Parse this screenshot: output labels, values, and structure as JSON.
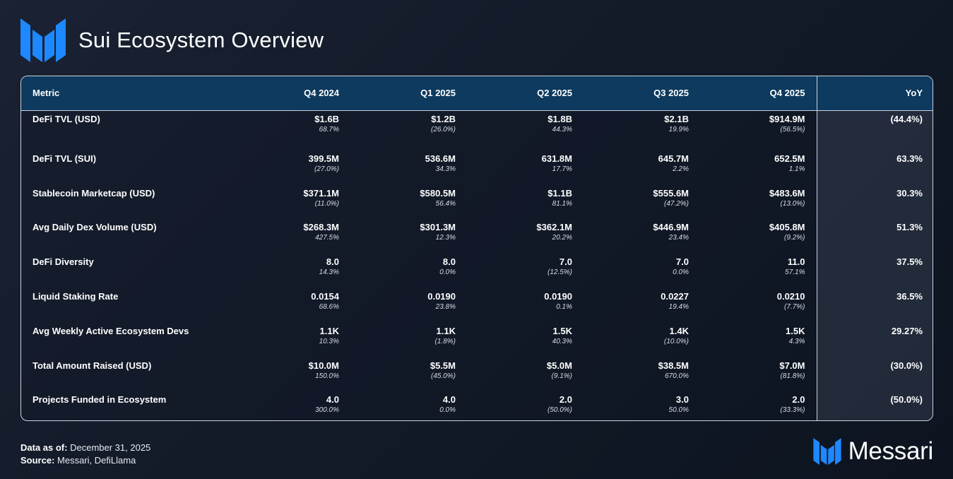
{
  "header": {
    "title": "Sui Ecosystem Overview"
  },
  "colors": {
    "accent_blue": "#1e88ff",
    "header_row": "#0d3a5e",
    "background": "#141c2a"
  },
  "table": {
    "columns": [
      "Metric",
      "Q4 2024",
      "Q1 2025",
      "Q2 2025",
      "Q3 2025",
      "Q4 2025",
      "YoY"
    ],
    "rows": [
      {
        "metric": "DeFi TVL (USD)",
        "q4_2024": {
          "v": "$1.6B",
          "c": "68.7%"
        },
        "q1_2025": {
          "v": "$1.2B",
          "c": "(26.0%)"
        },
        "q2_2025": {
          "v": "$1.8B",
          "c": "44.3%"
        },
        "q3_2025": {
          "v": "$2.1B",
          "c": "19.9%"
        },
        "q4_2025": {
          "v": "$914.9M",
          "c": "(56.5%)"
        },
        "yoy": "(44.4%)"
      },
      {
        "metric": "DeFi TVL (SUI)",
        "q4_2024": {
          "v": "399.5M",
          "c": "(27.0%)"
        },
        "q1_2025": {
          "v": "536.6M",
          "c": "34.3%"
        },
        "q2_2025": {
          "v": "631.8M",
          "c": "17.7%"
        },
        "q3_2025": {
          "v": "645.7M",
          "c": "2.2%"
        },
        "q4_2025": {
          "v": "652.5M",
          "c": "1.1%"
        },
        "yoy": "63.3%"
      },
      {
        "metric": "Stablecoin Marketcap (USD)",
        "q4_2024": {
          "v": "$371.1M",
          "c": "(11.0%)"
        },
        "q1_2025": {
          "v": "$580.5M",
          "c": "56.4%"
        },
        "q2_2025": {
          "v": "$1.1B",
          "c": "81.1%"
        },
        "q3_2025": {
          "v": "$555.6M",
          "c": "(47.2%)"
        },
        "q4_2025": {
          "v": "$483.6M",
          "c": "(13.0%)"
        },
        "yoy": "30.3%"
      },
      {
        "metric": "Avg Daily Dex Volume (USD)",
        "q4_2024": {
          "v": "$268.3M",
          "c": "427.5%"
        },
        "q1_2025": {
          "v": "$301.3M",
          "c": "12.3%"
        },
        "q2_2025": {
          "v": "$362.1M",
          "c": "20.2%"
        },
        "q3_2025": {
          "v": "$446.9M",
          "c": "23.4%"
        },
        "q4_2025": {
          "v": "$405.8M",
          "c": "(9.2%)"
        },
        "yoy": "51.3%"
      },
      {
        "metric": "DeFi Diversity",
        "q4_2024": {
          "v": "8.0",
          "c": "14.3%"
        },
        "q1_2025": {
          "v": "8.0",
          "c": "0.0%"
        },
        "q2_2025": {
          "v": "7.0",
          "c": "(12.5%)"
        },
        "q3_2025": {
          "v": "7.0",
          "c": "0.0%"
        },
        "q4_2025": {
          "v": "11.0",
          "c": "57.1%"
        },
        "yoy": "37.5%"
      },
      {
        "metric": "Liquid Staking Rate",
        "q4_2024": {
          "v": "0.0154",
          "c": "68.6%"
        },
        "q1_2025": {
          "v": "0.0190",
          "c": "23.8%"
        },
        "q2_2025": {
          "v": "0.0190",
          "c": "0.1%"
        },
        "q3_2025": {
          "v": "0.0227",
          "c": "19.4%"
        },
        "q4_2025": {
          "v": "0.0210",
          "c": "(7.7%)"
        },
        "yoy": "36.5%"
      },
      {
        "metric": "Avg Weekly Active Ecosystem Devs",
        "q4_2024": {
          "v": "1.1K",
          "c": "10.3%"
        },
        "q1_2025": {
          "v": "1.1K",
          "c": "(1.8%)"
        },
        "q2_2025": {
          "v": "1.5K",
          "c": "40.3%"
        },
        "q3_2025": {
          "v": "1.4K",
          "c": "(10.0%)"
        },
        "q4_2025": {
          "v": "1.5K",
          "c": "4.3%"
        },
        "yoy": "29.27%"
      },
      {
        "metric": "Total Amount Raised (USD)",
        "q4_2024": {
          "v": "$10.0M",
          "c": "150.0%"
        },
        "q1_2025": {
          "v": "$5.5M",
          "c": "(45.0%)"
        },
        "q2_2025": {
          "v": "$5.0M",
          "c": "(9.1%)"
        },
        "q3_2025": {
          "v": "$38.5M",
          "c": "670.0%"
        },
        "q4_2025": {
          "v": "$7.0M",
          "c": "(81.8%)"
        },
        "yoy": "(30.0%)"
      },
      {
        "metric": "Projects Funded in Ecosystem",
        "q4_2024": {
          "v": "4.0",
          "c": "300.0%"
        },
        "q1_2025": {
          "v": "4.0",
          "c": "0.0%"
        },
        "q2_2025": {
          "v": "2.0",
          "c": "(50.0%)"
        },
        "q3_2025": {
          "v": "3.0",
          "c": "50.0%"
        },
        "q4_2025": {
          "v": "2.0",
          "c": "(33.3%)"
        },
        "yoy": "(50.0%)"
      }
    ]
  },
  "footer": {
    "data_label": "Data as of:",
    "data_value": "December 31, 2025",
    "source_label": "Source:",
    "source_value": "Messari, DefiLlama"
  },
  "brand": {
    "name": "Messari",
    "icon": "messari-logo-icon"
  }
}
